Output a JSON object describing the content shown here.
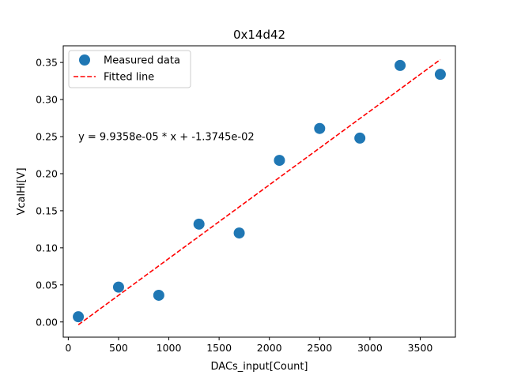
{
  "chart_data": {
    "type": "scatter",
    "title": "0x14d42",
    "xlabel": "DACs_input[Count]",
    "ylabel": "VcalHi[V]",
    "xlim": [
      -50,
      3850
    ],
    "ylim": [
      -0.0205,
      0.3725
    ],
    "xticks": [
      0,
      500,
      1000,
      1500,
      2000,
      2500,
      3000,
      3500
    ],
    "yticks": [
      0.0,
      0.05,
      0.1,
      0.15,
      0.2,
      0.25,
      0.3,
      0.35
    ],
    "xtick_labels": [
      "0",
      "500",
      "1000",
      "1500",
      "2000",
      "2500",
      "3000",
      "3500"
    ],
    "ytick_labels": [
      "0.00",
      "0.05",
      "0.10",
      "0.15",
      "0.20",
      "0.25",
      "0.30",
      "0.35"
    ],
    "grid": false,
    "legend_position": "top-left",
    "series": [
      {
        "name": "Measured data",
        "kind": "scatter",
        "color": "#1f77b4",
        "x": [
          100,
          500,
          900,
          1300,
          1700,
          2100,
          2500,
          2900,
          3300,
          3700
        ],
        "y": [
          0.007,
          0.047,
          0.036,
          0.132,
          0.12,
          0.218,
          0.261,
          0.248,
          0.346,
          0.334
        ]
      },
      {
        "name": "Fitted line",
        "kind": "line",
        "style": "dashed",
        "color": "#ff0000",
        "slope": 9.9358e-05,
        "intercept": -0.013745,
        "x": [
          100,
          3700
        ]
      }
    ],
    "annotations": [
      {
        "text": "y = 9.9358e-05 * x + -1.3745e-02",
        "x": 100,
        "y": 0.25
      }
    ]
  }
}
